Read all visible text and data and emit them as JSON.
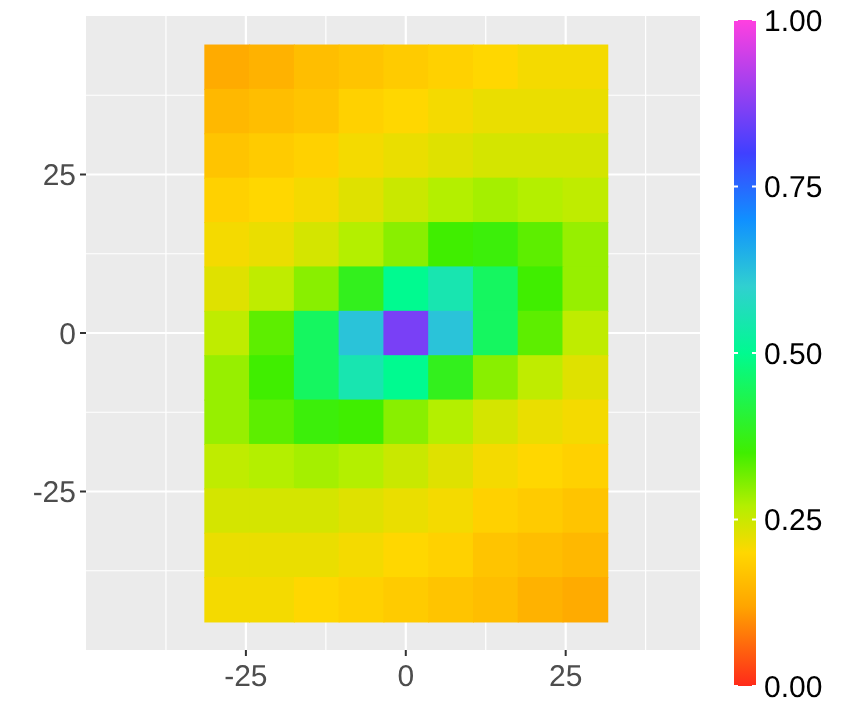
{
  "chart_data": {
    "type": "heatmap",
    "x": [
      -28,
      -21,
      -14,
      -7,
      0,
      7,
      14,
      21,
      28
    ],
    "y": [
      42,
      35,
      28,
      21,
      14,
      7,
      0,
      -7,
      -14,
      -21,
      -28,
      -35,
      -42
    ],
    "cells": [
      [
        0.13,
        0.14,
        0.16,
        0.17,
        0.18,
        0.19,
        0.2,
        0.21,
        0.21
      ],
      [
        0.15,
        0.16,
        0.17,
        0.19,
        0.2,
        0.21,
        0.22,
        0.22,
        0.22
      ],
      [
        0.17,
        0.18,
        0.19,
        0.21,
        0.22,
        0.23,
        0.24,
        0.24,
        0.24
      ],
      [
        0.19,
        0.2,
        0.21,
        0.23,
        0.25,
        0.27,
        0.28,
        0.27,
        0.26
      ],
      [
        0.21,
        0.22,
        0.24,
        0.27,
        0.3,
        0.35,
        0.36,
        0.33,
        0.29
      ],
      [
        0.23,
        0.26,
        0.3,
        0.38,
        0.5,
        0.55,
        0.45,
        0.35,
        0.29
      ],
      [
        0.26,
        0.33,
        0.45,
        0.62,
        0.86,
        0.62,
        0.45,
        0.33,
        0.26
      ],
      [
        0.29,
        0.35,
        0.45,
        0.55,
        0.5,
        0.38,
        0.3,
        0.26,
        0.23
      ],
      [
        0.29,
        0.33,
        0.36,
        0.35,
        0.3,
        0.27,
        0.24,
        0.22,
        0.21
      ],
      [
        0.26,
        0.27,
        0.28,
        0.27,
        0.25,
        0.23,
        0.21,
        0.2,
        0.19
      ],
      [
        0.24,
        0.24,
        0.24,
        0.23,
        0.22,
        0.21,
        0.19,
        0.18,
        0.17
      ],
      [
        0.22,
        0.22,
        0.22,
        0.21,
        0.2,
        0.19,
        0.17,
        0.16,
        0.15
      ],
      [
        0.21,
        0.21,
        0.2,
        0.19,
        0.18,
        0.17,
        0.16,
        0.14,
        0.13
      ]
    ],
    "xlim": [
      -50,
      46
    ],
    "ylim": [
      -50,
      50
    ],
    "xticks": [
      -25,
      0,
      25
    ],
    "yticks": [
      -25,
      0,
      25
    ],
    "clim": [
      0,
      1
    ],
    "cticks": [
      {
        "value": 0,
        "label": "0.00"
      },
      {
        "value": 0.25,
        "label": "0.25"
      },
      {
        "value": 0.5,
        "label": "0.50"
      },
      {
        "value": 0.75,
        "label": "0.75"
      },
      {
        "value": 1,
        "label": "1.00"
      }
    ],
    "grid": true
  }
}
